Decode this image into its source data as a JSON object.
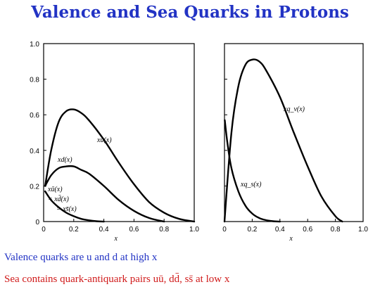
{
  "title": "Valence and Sea Quarks in Protons",
  "notes": [
    {
      "text": "Valence quarks are u and d at high x",
      "color": "#2233c4"
    },
    {
      "text": "Sea contains quark-antiquark pairs uū, dd̄, ss̄ at low x",
      "color": "#d01a1a"
    }
  ],
  "chart_data": [
    {
      "type": "line",
      "xlabel": "x",
      "ylabel": "",
      "xlim": [
        0,
        1.0
      ],
      "ylim": [
        0,
        1.0
      ],
      "x_ticks": [
        "0",
        "0.2",
        "0.4",
        "0.6",
        "0.8",
        "1.0"
      ],
      "y_ticks": [
        "0",
        "0.2",
        "0.4",
        "0.6",
        "0.8",
        "1.0"
      ],
      "series": [
        {
          "name": "xu(x)",
          "x": [
            0.01,
            0.05,
            0.1,
            0.15,
            0.2,
            0.25,
            0.3,
            0.4,
            0.5,
            0.6,
            0.7,
            0.8,
            0.9,
            1.0
          ],
          "y": [
            0.2,
            0.4,
            0.56,
            0.62,
            0.63,
            0.61,
            0.57,
            0.46,
            0.33,
            0.21,
            0.11,
            0.05,
            0.015,
            0
          ]
        },
        {
          "name": "xd(x)",
          "x": [
            0.01,
            0.05,
            0.1,
            0.15,
            0.2,
            0.25,
            0.3,
            0.4,
            0.5,
            0.6,
            0.7,
            0.8
          ],
          "y": [
            0.2,
            0.26,
            0.3,
            0.31,
            0.31,
            0.29,
            0.27,
            0.2,
            0.12,
            0.06,
            0.02,
            0
          ]
        },
        {
          "name": "xū(x) = xd̄(x) = xs̄(x)",
          "x": [
            0.01,
            0.05,
            0.1,
            0.15,
            0.2,
            0.25,
            0.3,
            0.35,
            0.4
          ],
          "y": [
            0.17,
            0.12,
            0.08,
            0.05,
            0.03,
            0.015,
            0.007,
            0.002,
            0
          ]
        }
      ],
      "labels": [
        "xu(x)",
        "xd(x)",
        "xū(x)",
        "= xd̄(x)",
        "= xs̄(x)"
      ]
    },
    {
      "type": "line",
      "xlabel": "x",
      "ylabel": "",
      "xlim": [
        0,
        1.0
      ],
      "ylim": [
        0,
        1.0
      ],
      "x_ticks": [
        "0",
        "0.2",
        "0.4",
        "0.6",
        "0.8",
        "1.0"
      ],
      "series": [
        {
          "name": "xq_v(x)",
          "x": [
            0,
            0.05,
            0.1,
            0.15,
            0.2,
            0.25,
            0.3,
            0.4,
            0.5,
            0.6,
            0.7,
            0.8,
            0.85
          ],
          "y": [
            0,
            0.5,
            0.76,
            0.88,
            0.91,
            0.9,
            0.85,
            0.7,
            0.5,
            0.31,
            0.14,
            0.03,
            0
          ]
        },
        {
          "name": "xq_s(x)",
          "x": [
            0.002,
            0.02,
            0.05,
            0.1,
            0.15,
            0.2,
            0.25,
            0.3,
            0.35,
            0.4
          ],
          "y": [
            0.57,
            0.45,
            0.3,
            0.17,
            0.09,
            0.045,
            0.02,
            0.008,
            0.002,
            0
          ]
        }
      ],
      "labels": [
        "xq_v(x)",
        "xq_s(x)"
      ]
    }
  ]
}
